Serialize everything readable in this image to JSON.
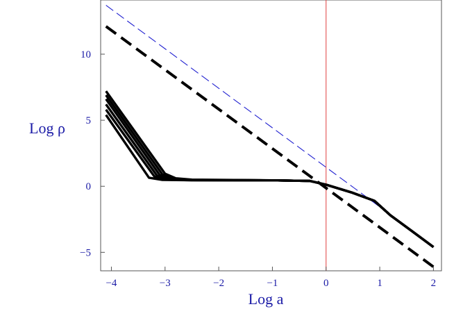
{
  "chart_data": {
    "type": "line",
    "title": "",
    "xlabel": "Log a",
    "ylabel": "Log ρ",
    "xlim": [
      -4.2,
      2.15
    ],
    "ylim": [
      -6.4,
      14.1
    ],
    "x_ticks": [
      {
        "value": -4,
        "label": "−4"
      },
      {
        "value": -3,
        "label": "−3"
      },
      {
        "value": -2,
        "label": "−2"
      },
      {
        "value": -1,
        "label": "−1"
      },
      {
        "value": 0,
        "label": "0"
      },
      {
        "value": 1,
        "label": "1"
      },
      {
        "value": 2,
        "label": "2"
      }
    ],
    "y_ticks": [
      {
        "value": -5,
        "label": "−5"
      },
      {
        "value": 0,
        "label": "0"
      },
      {
        "value": 5,
        "label": "5"
      },
      {
        "value": 10,
        "label": "10"
      }
    ],
    "grid": false,
    "legend": "none",
    "vertical_line": {
      "x": 0,
      "color": "#e04040"
    },
    "series": [
      {
        "style": "dashed-thin",
        "color": "#2020d0",
        "x": [
          -4.1,
          2.0
        ],
        "y": [
          13.7,
          -4.55
        ]
      },
      {
        "style": "dashed-thick",
        "color": "#000000",
        "x": [
          -4.1,
          2.0
        ],
        "y": [
          12.1,
          -6.1
        ]
      },
      {
        "style": "solid",
        "color": "#000000",
        "x": [
          -4.1,
          -3.3,
          -3.05,
          -2.5,
          -1.0,
          -0.3,
          0.0,
          0.5,
          0.9,
          1.2,
          1.6,
          2.0
        ],
        "y": [
          5.4,
          0.65,
          0.48,
          0.46,
          0.45,
          0.4,
          0.12,
          -0.5,
          -1.1,
          -2.2,
          -3.4,
          -4.6
        ]
      },
      {
        "style": "solid",
        "color": "#000000",
        "x": [
          -4.1,
          -3.2,
          -3.0,
          -2.5,
          -1.0,
          -0.3,
          0.0,
          0.5,
          0.9,
          1.2,
          1.6,
          2.0
        ],
        "y": [
          5.8,
          0.75,
          0.5,
          0.46,
          0.45,
          0.4,
          0.12,
          -0.5,
          -1.1,
          -2.2,
          -3.4,
          -4.6
        ]
      },
      {
        "style": "solid",
        "color": "#000000",
        "x": [
          -4.1,
          -3.15,
          -2.95,
          -2.5,
          -1.0,
          -0.3,
          0.0,
          0.5,
          0.9,
          1.2,
          1.6,
          2.0
        ],
        "y": [
          6.2,
          0.8,
          0.52,
          0.47,
          0.45,
          0.4,
          0.12,
          -0.5,
          -1.1,
          -2.2,
          -3.4,
          -4.6
        ]
      },
      {
        "style": "solid",
        "color": "#000000",
        "x": [
          -4.1,
          -3.1,
          -2.9,
          -2.5,
          -1.0,
          -0.3,
          0.0,
          0.5,
          0.9,
          1.2,
          1.6,
          2.0
        ],
        "y": [
          6.6,
          0.85,
          0.55,
          0.47,
          0.45,
          0.4,
          0.12,
          -0.5,
          -1.1,
          -2.2,
          -3.4,
          -4.6
        ]
      },
      {
        "style": "solid",
        "color": "#000000",
        "x": [
          -4.1,
          -3.05,
          -2.85,
          -2.5,
          -1.0,
          -0.3,
          0.0,
          0.5,
          0.9,
          1.2,
          1.6,
          2.0
        ],
        "y": [
          6.9,
          0.9,
          0.57,
          0.48,
          0.45,
          0.4,
          0.12,
          -0.5,
          -1.1,
          -2.2,
          -3.4,
          -4.6
        ]
      },
      {
        "style": "solid",
        "color": "#000000",
        "x": [
          -4.1,
          -3.0,
          -2.8,
          -2.5,
          -1.0,
          -0.3,
          0.0,
          0.5,
          0.9,
          1.2,
          1.6,
          2.0
        ],
        "y": [
          7.2,
          0.95,
          0.6,
          0.5,
          0.45,
          0.4,
          0.12,
          -0.5,
          -1.1,
          -2.2,
          -3.4,
          -4.6
        ]
      }
    ]
  }
}
